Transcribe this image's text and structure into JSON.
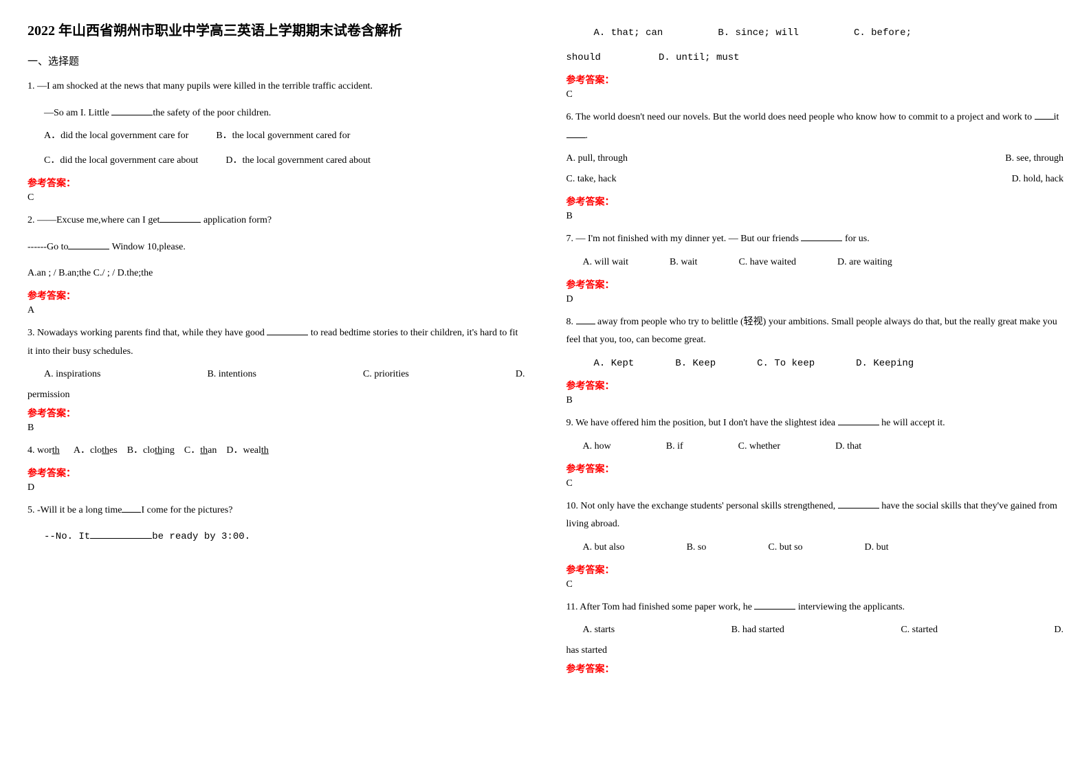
{
  "title": "2022 年山西省朔州市职业中学高三英语上学期期末试卷含解析",
  "section1": "一、选择题",
  "q1": {
    "stem": "1. —I am shocked at the news that many pupils were killed in the terrible traffic accident.",
    "line2_pre": "—So am I. Little ",
    "line2_post": "the safety of the poor children.",
    "optA": "A．did the local government care for",
    "optB": "B．the local government cared for",
    "optC": "C．did the local government care about",
    "optD": "D．the local government cared about",
    "ans": "C"
  },
  "q2": {
    "stem_pre": "2. ——Excuse me,where can I get",
    "stem_post": " application form?",
    "line2_pre": "------Go to",
    "line2_post": " Window 10,please.",
    "opts": "A.an ; /  B.an;the  C./ ; /  D.the;the",
    "ans": "A"
  },
  "q3": {
    "stem_pre": "3. Nowadays working parents find that, while they have good ",
    "stem_post": " to read bedtime stories to their children, it's hard to fit it into their busy schedules.",
    "optA": "A. inspirations",
    "optB": "B. intentions",
    "optC": "C. priorities",
    "optD": "D. permission",
    "ans": "B"
  },
  "q4": {
    "stem_pre": "4. wor",
    "stem_u": "th",
    "optA_pre": "A．clo",
    "optA_u": "th",
    "optA_post": "es",
    "optB_pre": "B．clo",
    "optB_u": "th",
    "optB_post": "ing",
    "optC_pre": "C．",
    "optC_u": "th",
    "optC_post": "an",
    "optD_pre": "D．weal",
    "optD_u": "th",
    "ans": "D"
  },
  "q5": {
    "stem_pre": "5. -Will it be a long time",
    "stem_post": "I come for the pictures?",
    "line2_pre": "--No. It",
    "line2_post": "be ready by 3:00.",
    "optA": "A. that; can",
    "optB": "B. since; will",
    "optC": "C. before; should",
    "optD": "D. until; must",
    "ans": "C"
  },
  "q6": {
    "stem_pre": "6. The world doesn't need our novels. But the world does need people who know how to commit to a project and work to ",
    "stem_mid": "it ",
    "stem_post": ".",
    "optA": "A. pull, through",
    "optB": "B. see, through",
    "optC": "C. take, hack",
    "optD": "D. hold, hack",
    "ans": "B"
  },
  "q7": {
    "stem_pre": "7. — I'm not finished with my dinner yet.  — But our friends ",
    "stem_post": " for us.",
    "optA": "A. will wait",
    "optB": "B. wait",
    "optC": "C. have waited",
    "optD": "D. are waiting",
    "ans": "D"
  },
  "q8": {
    "stem_pre": "8. ",
    "stem_post": " away from people who try to belittle (轻视) your ambitions. Small people always do that, but the really great make you feel that you, too, can become great.",
    "optA": "A. Kept",
    "optB": "B. Keep",
    "optC": "C. To keep",
    "optD": "D. Keeping",
    "ans": "B"
  },
  "q9": {
    "stem_pre": "9. We have offered him the position, but I don't have the slightest idea ",
    "stem_post": " he will accept it.",
    "optA": "A. how",
    "optB": "B. if",
    "optC": "C. whether",
    "optD": "D. that",
    "ans": "C"
  },
  "q10": {
    "stem_pre": "10. Not only have the exchange students' personal skills strengthened, ",
    "stem_post": " have the social skills that they've gained from living abroad.",
    "optA": "A. but also",
    "optB": "B. so",
    "optC": "C. but so",
    "optD": "D. but",
    "ans": "C"
  },
  "q11": {
    "stem_pre": "11. After Tom had finished some paper work, he ",
    "stem_post": " interviewing the applicants.",
    "optA": "A. starts",
    "optB": "B. had started",
    "optC": "C. started",
    "optD": "D. has started"
  },
  "labels": {
    "answer": "参考答案："
  }
}
